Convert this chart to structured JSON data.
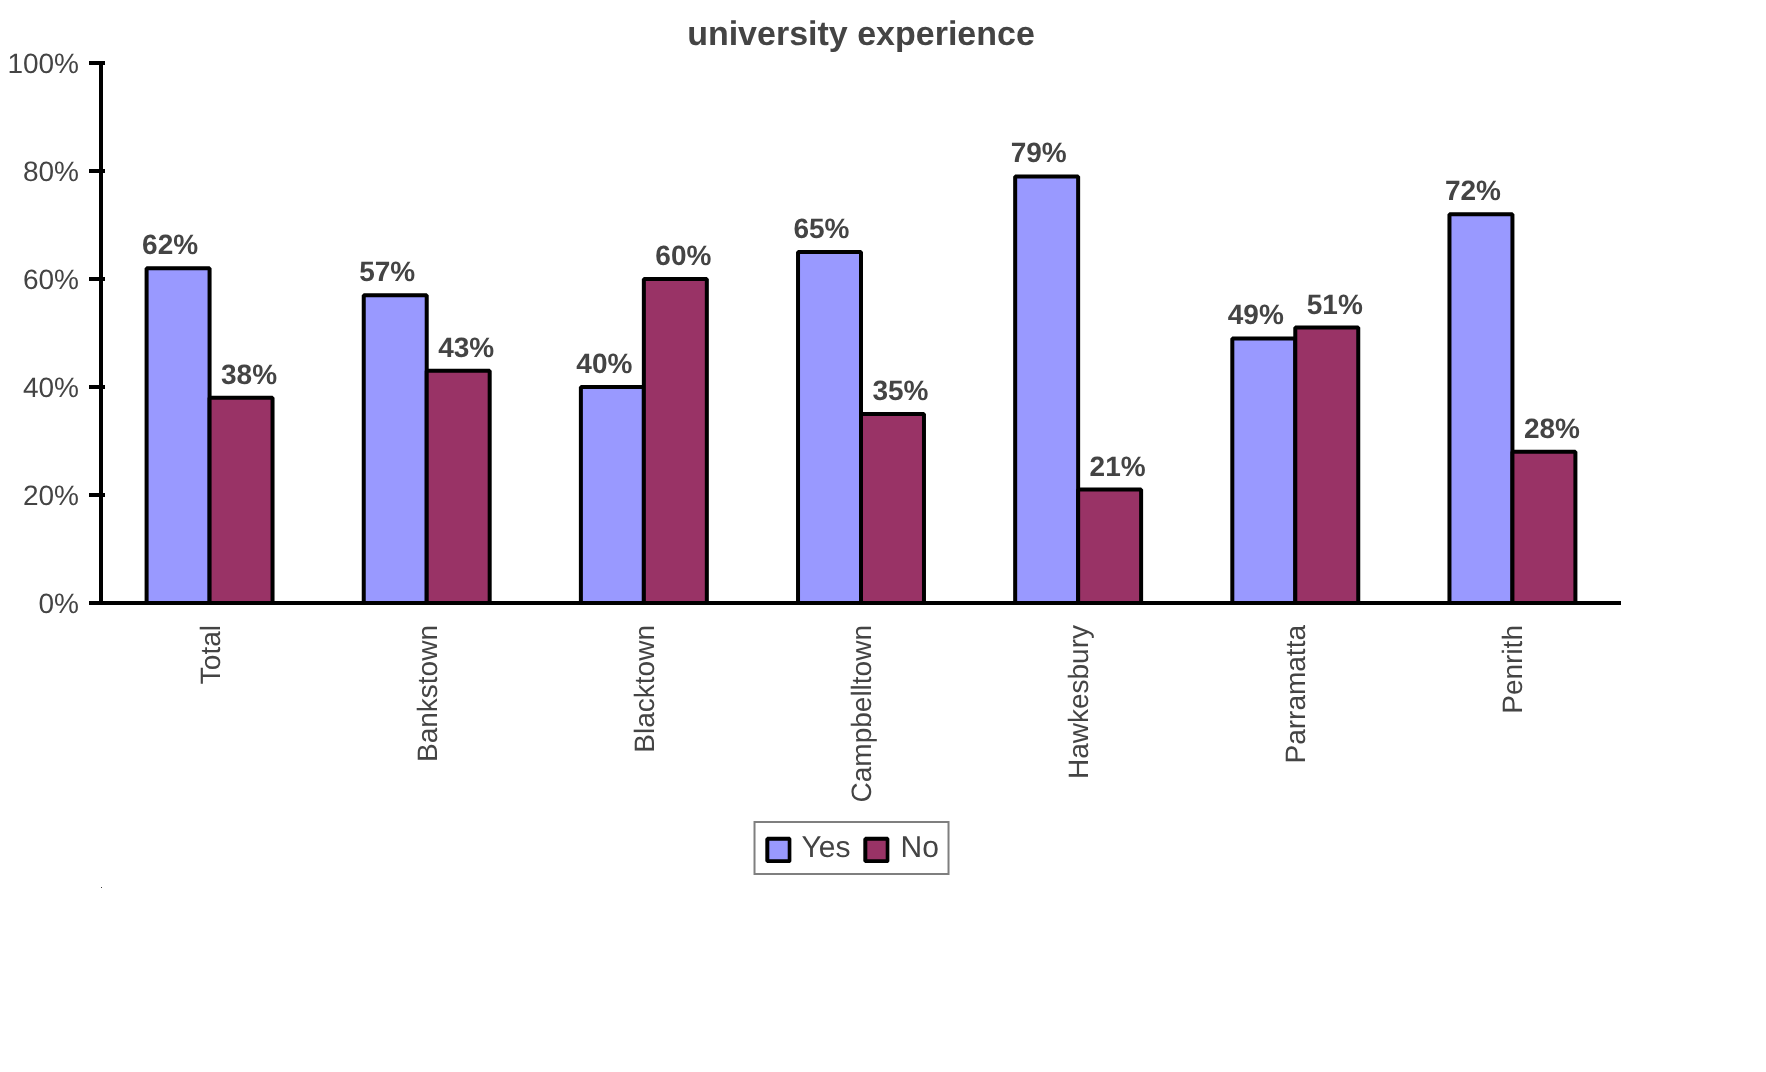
{
  "chart_data": {
    "type": "bar",
    "title": "university experience",
    "categories": [
      "Total",
      "Bankstown",
      "Blacktown",
      "Campbelltown",
      "Hawkesbury",
      "Parramatta",
      "Penrith"
    ],
    "series": [
      {
        "name": "Yes",
        "color": "#9999ff",
        "values": [
          62,
          57,
          40,
          65,
          79,
          49,
          72
        ],
        "value_labels": [
          "62%",
          "57%",
          "40%",
          "65%",
          "79%",
          "49%",
          "72%"
        ]
      },
      {
        "name": "No",
        "color": "#993366",
        "values": [
          38,
          43,
          60,
          35,
          21,
          51,
          28
        ],
        "value_labels": [
          "38%",
          "43%",
          "60%",
          "35%",
          "21%",
          "51%",
          "28%"
        ]
      }
    ],
    "ylim": [
      0,
      100
    ],
    "yticks": [
      {
        "value": 0,
        "label": "0%"
      },
      {
        "value": 20,
        "label": "20%"
      },
      {
        "value": 40,
        "label": "40%"
      },
      {
        "value": 60,
        "label": "60%"
      },
      {
        "value": 80,
        "label": "80%"
      },
      {
        "value": 100,
        "label": "100%"
      }
    ],
    "grid": false,
    "legend": "bottom"
  }
}
